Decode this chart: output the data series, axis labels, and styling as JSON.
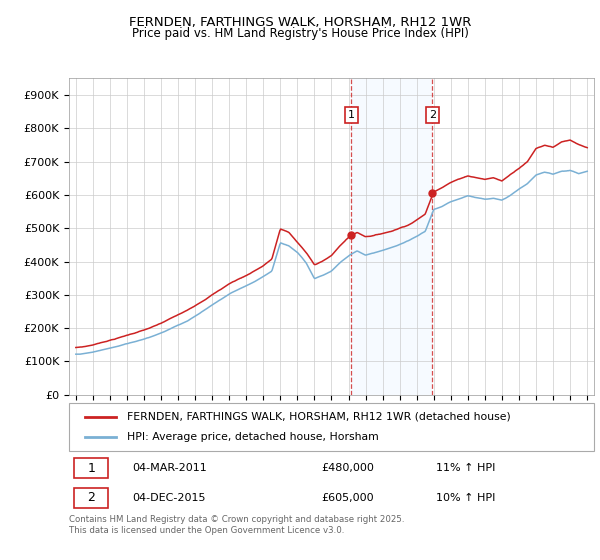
{
  "title": "FERNDEN, FARTHINGS WALK, HORSHAM, RH12 1WR",
  "subtitle": "Price paid vs. HM Land Registry's House Price Index (HPI)",
  "ylim": [
    0,
    950000
  ],
  "yticks": [
    0,
    100000,
    200000,
    300000,
    400000,
    500000,
    600000,
    700000,
    800000,
    900000
  ],
  "ytick_labels": [
    "£0",
    "£100K",
    "£200K",
    "£300K",
    "£400K",
    "£500K",
    "£600K",
    "£700K",
    "£800K",
    "£900K"
  ],
  "sale1_year": 2011.17,
  "sale1_price": 480000,
  "sale2_year": 2015.92,
  "sale2_price": 605000,
  "line_color_red": "#cc2222",
  "line_color_blue": "#7ab0d4",
  "shaded_color": "#ddeeff",
  "grid_color": "#cccccc",
  "legend1": "FERNDEN, FARTHINGS WALK, HORSHAM, RH12 1WR (detached house)",
  "legend2": "HPI: Average price, detached house, Horsham",
  "table_row1": [
    "1",
    "04-MAR-2011",
    "£480,000",
    "11% ↑ HPI"
  ],
  "table_row2": [
    "2",
    "04-DEC-2015",
    "£605,000",
    "10% ↑ HPI"
  ],
  "footnote": "Contains HM Land Registry data © Crown copyright and database right 2025.\nThis data is licensed under the Open Government Licence v3.0.",
  "red_data": {
    "years": [
      1995,
      1995.5,
      1996,
      1996.5,
      1997,
      1997.5,
      1998,
      1998.5,
      1999,
      1999.5,
      2000,
      2000.5,
      2001,
      2001.5,
      2002,
      2002.5,
      2003,
      2003.5,
      2004,
      2004.5,
      2005,
      2005.5,
      2006,
      2006.5,
      2007,
      2007.5,
      2008,
      2008.5,
      2009,
      2009.5,
      2010,
      2010.5,
      2011,
      2011.17,
      2011.5,
      2012,
      2012.5,
      2013,
      2013.5,
      2014,
      2014.5,
      2015,
      2015.5,
      2015.92,
      2016,
      2016.5,
      2017,
      2017.5,
      2018,
      2018.5,
      2019,
      2019.5,
      2020,
      2020.5,
      2021,
      2021.5,
      2022,
      2022.5,
      2023,
      2023.5,
      2024,
      2024.5,
      2025
    ],
    "values": [
      142000,
      145000,
      150000,
      158000,
      165000,
      172000,
      180000,
      188000,
      196000,
      205000,
      215000,
      228000,
      240000,
      252000,
      268000,
      285000,
      302000,
      318000,
      335000,
      348000,
      360000,
      375000,
      390000,
      410000,
      500000,
      490000,
      460000,
      430000,
      392000,
      405000,
      420000,
      450000,
      475000,
      480000,
      490000,
      478000,
      482000,
      488000,
      495000,
      505000,
      515000,
      530000,
      548000,
      605000,
      615000,
      630000,
      645000,
      655000,
      665000,
      660000,
      655000,
      660000,
      650000,
      670000,
      690000,
      710000,
      750000,
      760000,
      755000,
      770000,
      775000,
      760000,
      750000
    ]
  },
  "blue_data": {
    "years": [
      1995,
      1995.5,
      1996,
      1996.5,
      1997,
      1997.5,
      1998,
      1998.5,
      1999,
      1999.5,
      2000,
      2000.5,
      2001,
      2001.5,
      2002,
      2002.5,
      2003,
      2003.5,
      2004,
      2004.5,
      2005,
      2005.5,
      2006,
      2006.5,
      2007,
      2007.5,
      2008,
      2008.5,
      2009,
      2009.5,
      2010,
      2010.5,
      2011,
      2011.5,
      2012,
      2012.5,
      2013,
      2013.5,
      2014,
      2014.5,
      2015,
      2015.5,
      2015.92,
      2016,
      2016.5,
      2017,
      2017.5,
      2018,
      2018.5,
      2019,
      2019.5,
      2020,
      2020.5,
      2021,
      2021.5,
      2022,
      2022.5,
      2023,
      2023.5,
      2024,
      2024.5,
      2025
    ],
    "values": [
      122000,
      124000,
      128000,
      134000,
      140000,
      146000,
      153000,
      160000,
      168000,
      177000,
      187000,
      198000,
      210000,
      222000,
      238000,
      255000,
      272000,
      288000,
      305000,
      318000,
      330000,
      343000,
      358000,
      375000,
      460000,
      450000,
      430000,
      400000,
      352000,
      362000,
      375000,
      400000,
      420000,
      435000,
      422000,
      428000,
      435000,
      442000,
      452000,
      462000,
      475000,
      490000,
      545000,
      556000,
      565000,
      578000,
      588000,
      598000,
      592000,
      588000,
      592000,
      585000,
      600000,
      618000,
      635000,
      660000,
      668000,
      663000,
      672000,
      675000,
      665000,
      672000
    ]
  }
}
